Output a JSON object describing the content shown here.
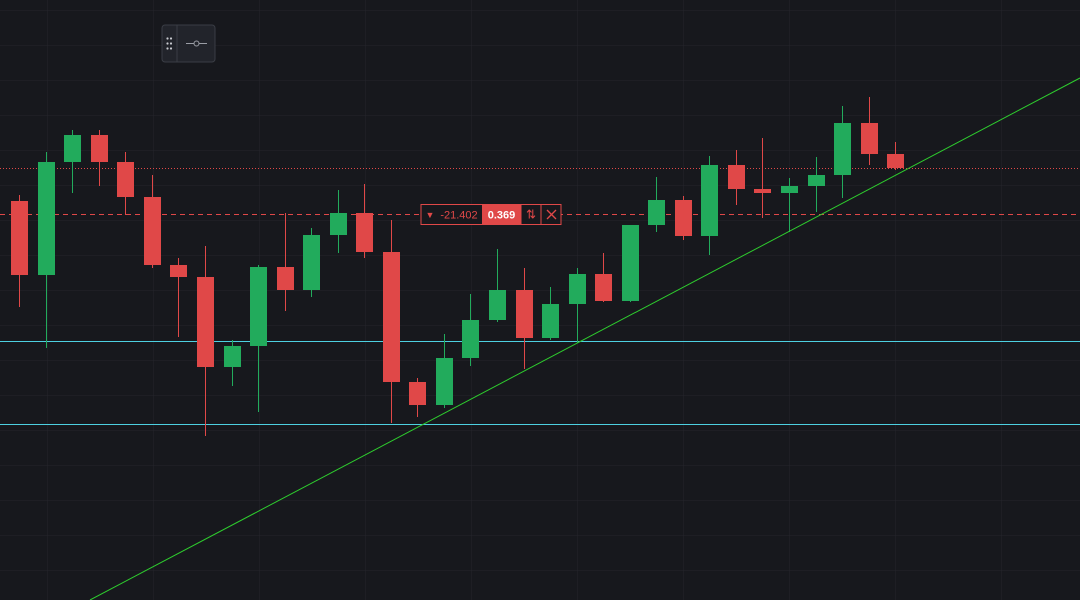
{
  "chart_data": {
    "type": "candlestick",
    "xlim": [
      -0.72,
      39.96
    ],
    "ylim": [
      0,
      60
    ],
    "up_color": "#22ab5c",
    "down_color": "#e04848",
    "open": [
      39.9,
      32.5,
      43.8,
      46.5,
      43.8,
      40.3,
      33.5,
      32.3,
      23.3,
      25.4,
      33.3,
      31.0,
      36.5,
      38.7,
      34.8,
      21.8,
      19.5,
      24.2,
      28.0,
      31.0,
      26.2,
      29.6,
      32.6,
      29.9,
      37.5,
      40.0,
      36.4,
      43.5,
      41.1,
      40.7,
      41.4,
      42.5,
      47.7,
      44.6
    ],
    "high": [
      40.5,
      44.8,
      47.0,
      47.0,
      44.8,
      42.5,
      34.2,
      35.4,
      26.0,
      33.5,
      38.7,
      37.2,
      41.0,
      41.6,
      38.0,
      22.2,
      26.6,
      30.6,
      35.1,
      33.2,
      31.3,
      33.2,
      34.7,
      37.5,
      42.3,
      40.4,
      44.4,
      45.0,
      46.2,
      42.2,
      44.3,
      49.4,
      50.3,
      45.8
    ],
    "low": [
      29.3,
      25.2,
      40.7,
      41.4,
      38.5,
      33.2,
      26.3,
      16.4,
      21.4,
      18.8,
      28.9,
      30.3,
      34.7,
      34.2,
      17.7,
      18.3,
      19.2,
      23.4,
      27.8,
      23.1,
      26.0,
      25.7,
      29.8,
      29.8,
      36.8,
      36.0,
      34.5,
      39.5,
      38.2,
      36.8,
      38.8,
      40.2,
      43.5,
      43.0
    ],
    "close": [
      32.5,
      43.8,
      46.5,
      43.8,
      40.3,
      33.5,
      32.3,
      23.3,
      25.4,
      33.3,
      31.0,
      36.5,
      38.7,
      34.8,
      21.8,
      19.5,
      24.2,
      28.0,
      31.0,
      26.2,
      29.6,
      32.6,
      29.9,
      37.5,
      40.0,
      36.4,
      43.5,
      41.1,
      40.7,
      41.4,
      42.5,
      47.7,
      44.6,
      43.2
    ],
    "hlines": [
      {
        "value": 25.9,
        "color": "#4dd0e1",
        "style": "solid"
      },
      {
        "value": 17.6,
        "color": "#4dd0e1",
        "style": "solid"
      },
      {
        "value": 43.2,
        "color": "#e04848",
        "style": "dotted"
      }
    ],
    "trendline": {
      "x": [
        2.67,
        39.96
      ],
      "y": [
        0,
        52.2
      ],
      "color": "#2ecc2e"
    },
    "order_line": {
      "value": 38.6,
      "color": "#e04848",
      "change": "-21.402",
      "quantity": "0.369"
    }
  }
}
